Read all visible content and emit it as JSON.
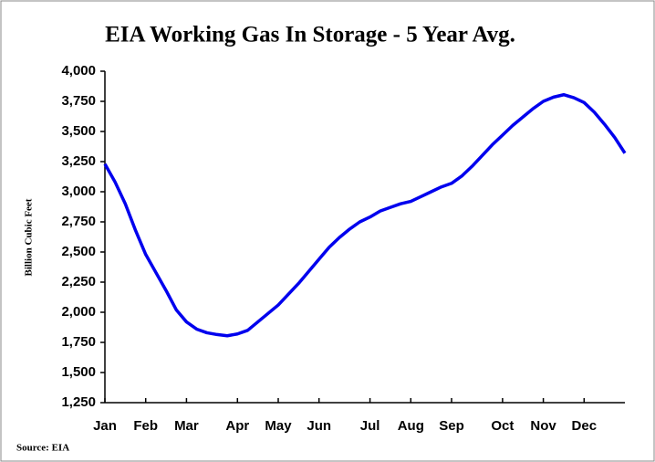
{
  "chart_data": {
    "type": "line",
    "title": "EIA Working Gas In Storage - 5 Year Avg.",
    "y_label": "Billion Cubic Feet",
    "source": "Source: EIA",
    "categories": [
      "Jan",
      null,
      null,
      null,
      "Feb",
      null,
      null,
      null,
      "Mar",
      null,
      null,
      null,
      null,
      "Apr",
      null,
      null,
      null,
      "May",
      null,
      null,
      null,
      "Jun",
      null,
      null,
      null,
      null,
      "Jul",
      null,
      null,
      null,
      "Aug",
      null,
      null,
      null,
      "Sep",
      null,
      null,
      null,
      null,
      "Oct",
      null,
      null,
      null,
      "Nov",
      null,
      null,
      null,
      "Dec",
      null,
      null,
      null,
      null
    ],
    "series": [
      {
        "name": "5 Year Avg.",
        "color": "#0000ee",
        "values": [
          3230,
          3080,
          2900,
          2680,
          2480,
          2330,
          2180,
          2020,
          1920,
          1860,
          1830,
          1815,
          1805,
          1820,
          1850,
          1920,
          1990,
          2060,
          2150,
          2240,
          2340,
          2440,
          2540,
          2620,
          2690,
          2750,
          2790,
          2840,
          2870,
          2900,
          2920,
          2960,
          3000,
          3040,
          3070,
          3130,
          3210,
          3300,
          3390,
          3470,
          3550,
          3620,
          3690,
          3750,
          3785,
          3805,
          3780,
          3740,
          3660,
          3560,
          3450,
          3320
        ]
      }
    ],
    "ylim": [
      1250,
      4000
    ],
    "yticks": [
      {
        "value": 1250,
        "label": "1,250"
      },
      {
        "value": 1500,
        "label": "1,500"
      },
      {
        "value": 1750,
        "label": "1,750"
      },
      {
        "value": 2000,
        "label": "2,000"
      },
      {
        "value": 2250,
        "label": "2,250"
      },
      {
        "value": 2500,
        "label": "2,500"
      },
      {
        "value": 2750,
        "label": "2,750"
      },
      {
        "value": 3000,
        "label": "3,000"
      },
      {
        "value": 3250,
        "label": "3,250"
      },
      {
        "value": 3500,
        "label": "3,500"
      },
      {
        "value": 3750,
        "label": "3,750"
      },
      {
        "value": 4000,
        "label": "4,000"
      }
    ],
    "grid": false
  }
}
